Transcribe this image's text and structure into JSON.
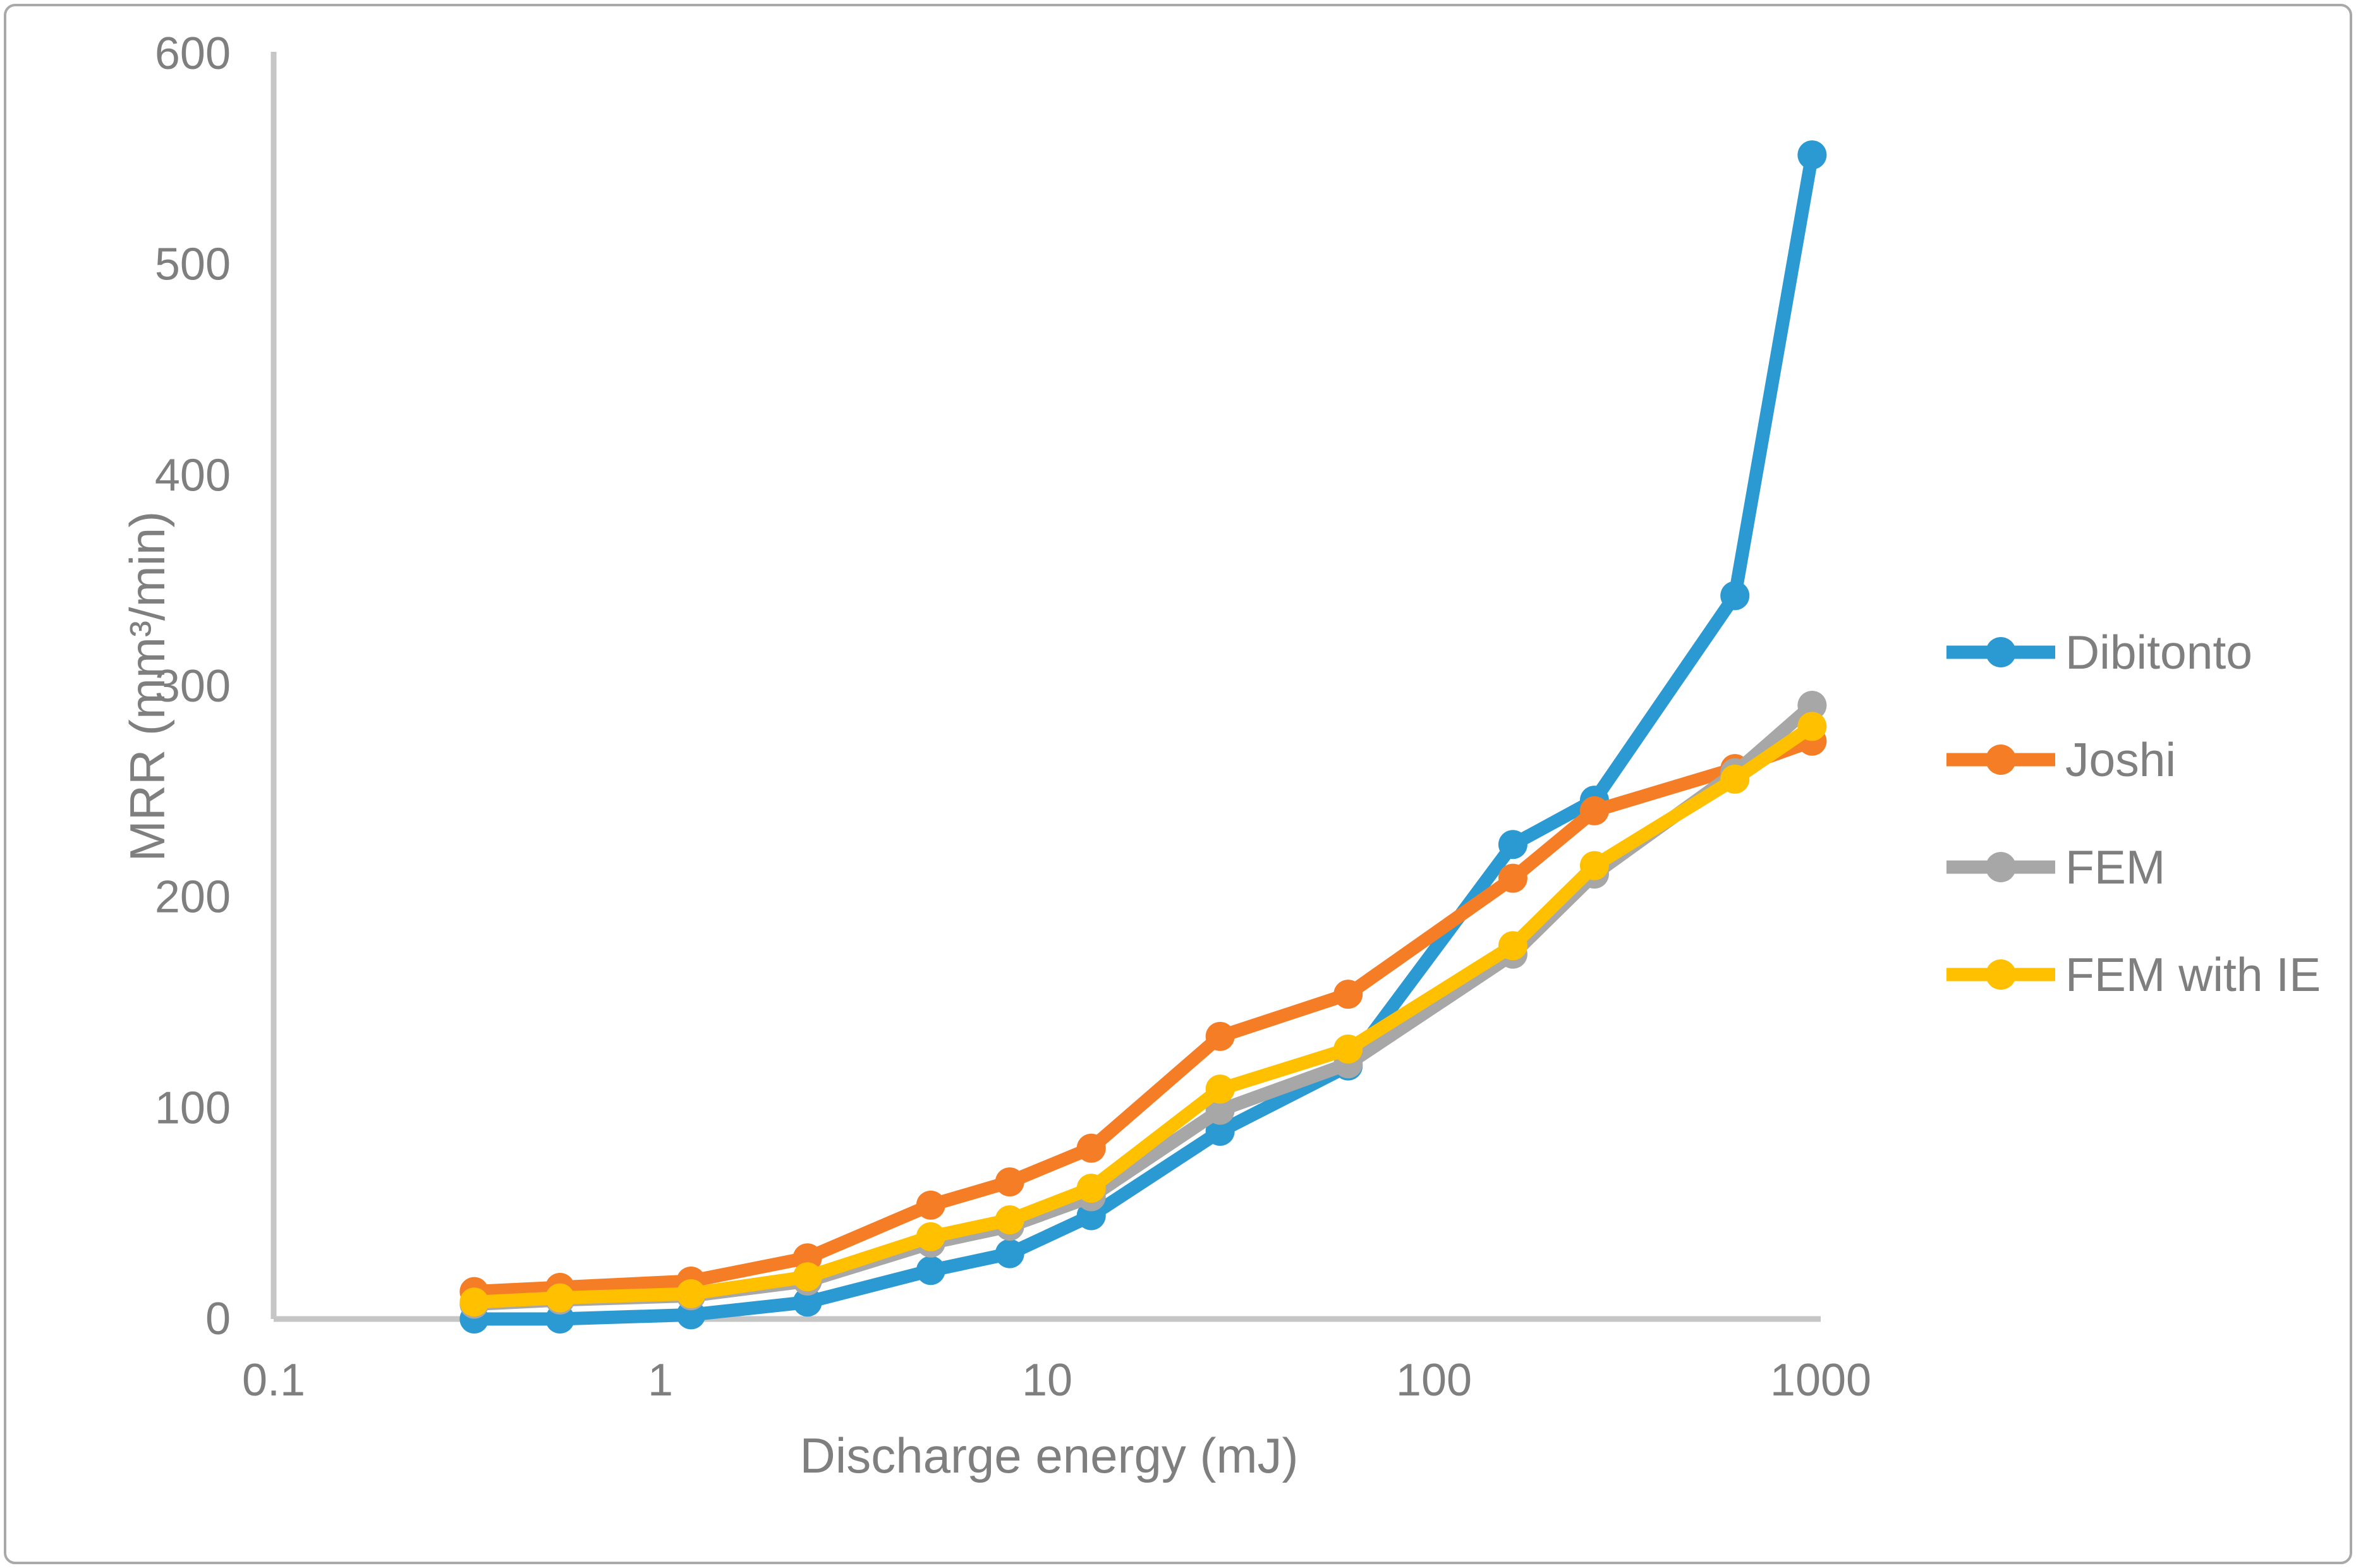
{
  "figure": {
    "background": "#FFFFFF",
    "border_color": "#A9A9A9",
    "axis_color": "#C6C6C6",
    "text_color": "#7F7F7F"
  },
  "chart_data": {
    "type": "line",
    "title": "",
    "xlabel": "Discharge energy (mJ)",
    "ylabel": "MRR (mm³/min)",
    "x_scale": "log",
    "grid": false,
    "legend_position": "right",
    "xlim": [
      0.1,
      1000
    ],
    "ylim": [
      0,
      600
    ],
    "x_ticks": [
      {
        "value": 0.1,
        "label": "0.1"
      },
      {
        "value": 1,
        "label": "1"
      },
      {
        "value": 10,
        "label": "10"
      },
      {
        "value": 100,
        "label": "100"
      },
      {
        "value": 1000,
        "label": "1000"
      }
    ],
    "y_ticks": [
      {
        "value": 0,
        "label": "0"
      },
      {
        "value": 100,
        "label": "100"
      },
      {
        "value": 200,
        "label": "200"
      },
      {
        "value": 300,
        "label": "300"
      },
      {
        "value": 400,
        "label": "400"
      },
      {
        "value": 500,
        "label": "500"
      },
      {
        "value": 600,
        "label": "600"
      }
    ],
    "x": [
      0.33,
      0.55,
      1.2,
      2.4,
      5,
      8,
      13,
      28,
      60,
      160,
      260,
      600,
      950
    ],
    "series": [
      {
        "name": "Dibitonto",
        "color": "#2B9AD3",
        "values": [
          0,
          0,
          2,
          8,
          23,
          31,
          49,
          89,
          120,
          225,
          246,
          343,
          552
        ]
      },
      {
        "name": "Joshi",
        "color": "#F57D26",
        "values": [
          13,
          15,
          18,
          29,
          54,
          65,
          81,
          134,
          154,
          209,
          241,
          261,
          274
        ]
      },
      {
        "name": "FEM",
        "color": "#A7A7A7",
        "values": [
          7,
          9,
          11,
          18,
          36,
          44,
          58,
          99,
          121,
          173,
          211,
          259,
          291
        ]
      },
      {
        "name": "FEM with IE",
        "color": "#FFC000",
        "values": [
          8,
          10,
          12,
          20,
          39,
          47,
          62,
          109,
          128,
          177,
          215,
          256,
          281
        ]
      }
    ]
  }
}
